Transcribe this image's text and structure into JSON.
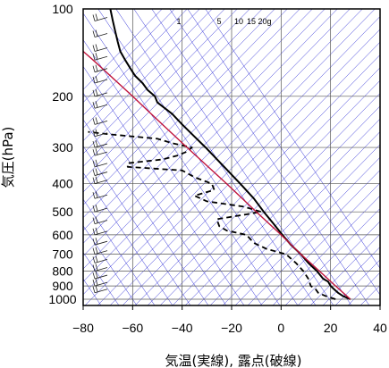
{
  "chart_data": {
    "type": "line",
    "subtype": "skew-T log-p aerological diagram",
    "xlabel": "気温(実線), 露点(破線)",
    "ylabel": "気圧(hPa)",
    "xlim": [
      -80,
      40
    ],
    "ylim": [
      1050,
      100
    ],
    "y_scale": "log",
    "x_ticks": [
      -80,
      -60,
      -40,
      -20,
      0,
      20,
      40
    ],
    "x_tick_labels": [
      "−80",
      "−60",
      "−40",
      "−20",
      "0",
      "20",
      "40"
    ],
    "y_ticks": [
      100,
      200,
      300,
      400,
      500,
      600,
      700,
      800,
      900,
      1000
    ],
    "y_tick_labels": [
      "100",
      "200",
      "300",
      "400",
      "500",
      "600",
      "700",
      "800",
      "900",
      "1000"
    ],
    "mixing_ratio_labels": [
      "1",
      "5",
      "10",
      "15",
      "20g"
    ],
    "grid": true,
    "colors": {
      "background_lines": "#2b2bd6",
      "temperature": "#000000",
      "dewpoint": "#000000",
      "parcel": "#c0143c",
      "grid": "#555555"
    },
    "series": [
      {
        "style": "solid",
        "points": [
          {
            "p": 1000,
            "t": 28
          },
          {
            "p": 975,
            "t": 25
          },
          {
            "p": 950,
            "t": 23
          },
          {
            "p": 925,
            "t": 21.5
          },
          {
            "p": 900,
            "t": 20
          },
          {
            "p": 870,
            "t": 19
          },
          {
            "p": 850,
            "t": 17
          },
          {
            "p": 800,
            "t": 14.5
          },
          {
            "p": 750,
            "t": 11
          },
          {
            "p": 700,
            "t": 8
          },
          {
            "p": 650,
            "t": 4
          },
          {
            "p": 600,
            "t": 0.5
          },
          {
            "p": 550,
            "t": -3
          },
          {
            "p": 500,
            "t": -7
          },
          {
            "p": 450,
            "t": -11
          },
          {
            "p": 400,
            "t": -16.5
          },
          {
            "p": 350,
            "t": -23
          },
          {
            "p": 300,
            "t": -30.5
          },
          {
            "p": 270,
            "t": -36
          },
          {
            "p": 250,
            "t": -40
          },
          {
            "p": 230,
            "t": -44
          },
          {
            "p": 210,
            "t": -50
          },
          {
            "p": 200,
            "t": -51
          },
          {
            "p": 190,
            "t": -54
          },
          {
            "p": 180,
            "t": -56
          },
          {
            "p": 170,
            "t": -59
          },
          {
            "p": 160,
            "t": -61
          },
          {
            "p": 150,
            "t": -63
          },
          {
            "p": 140,
            "t": -65
          },
          {
            "p": 130,
            "t": -66
          },
          {
            "p": 120,
            "t": -67
          },
          {
            "p": 110,
            "t": -68
          },
          {
            "p": 100,
            "t": -69
          }
        ]
      },
      {
        "style": "dashed",
        "points": [
          {
            "p": 1000,
            "t": 22
          },
          {
            "p": 975,
            "t": 18
          },
          {
            "p": 950,
            "t": 15
          },
          {
            "p": 925,
            "t": 14
          },
          {
            "p": 900,
            "t": 12
          },
          {
            "p": 850,
            "t": 11
          },
          {
            "p": 800,
            "t": 9
          },
          {
            "p": 750,
            "t": 6
          },
          {
            "p": 700,
            "t": 2
          },
          {
            "p": 670,
            "t": -6
          },
          {
            "p": 640,
            "t": -11
          },
          {
            "p": 600,
            "t": -14
          },
          {
            "p": 580,
            "t": -22
          },
          {
            "p": 560,
            "t": -25
          },
          {
            "p": 530,
            "t": -26
          },
          {
            "p": 510,
            "t": -14
          },
          {
            "p": 500,
            "t": -8
          },
          {
            "p": 480,
            "t": -15
          },
          {
            "p": 460,
            "t": -30
          },
          {
            "p": 440,
            "t": -35
          },
          {
            "p": 420,
            "t": -27
          },
          {
            "p": 400,
            "t": -28
          },
          {
            "p": 380,
            "t": -35
          },
          {
            "p": 360,
            "t": -40
          },
          {
            "p": 350,
            "t": -62
          },
          {
            "p": 340,
            "t": -62
          },
          {
            "p": 330,
            "t": -48
          },
          {
            "p": 320,
            "t": -42
          },
          {
            "p": 310,
            "t": -38
          },
          {
            "p": 300,
            "t": -36
          },
          {
            "p": 290,
            "t": -44
          },
          {
            "p": 280,
            "t": -50
          },
          {
            "p": 270,
            "t": -70
          },
          {
            "p": 265,
            "t": -78
          }
        ]
      },
      {
        "style": "solid-red",
        "points": [
          {
            "p": 1000,
            "t": 28
          },
          {
            "p": 900,
            "t": 22
          },
          {
            "p": 800,
            "t": 15.5
          },
          {
            "p": 700,
            "t": 8
          },
          {
            "p": 600,
            "t": 0
          },
          {
            "p": 500,
            "t": -10
          },
          {
            "p": 400,
            "t": -22
          },
          {
            "p": 300,
            "t": -38
          },
          {
            "p": 250,
            "t": -48
          },
          {
            "p": 200,
            "t": -60
          },
          {
            "p": 170,
            "t": -69
          },
          {
            "p": 150,
            "t": -76
          },
          {
            "p": 140,
            "t": -80
          }
        ]
      }
    ],
    "wind_barbs_column": true
  }
}
